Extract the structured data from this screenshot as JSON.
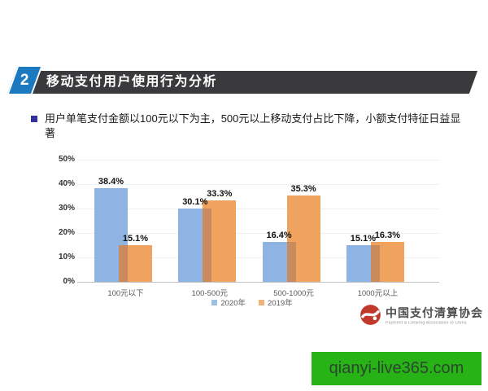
{
  "header": {
    "number": "2",
    "title": "移动支付用户使用行为分析",
    "banner_color": "#3a3a3c",
    "number_box_color": "#1b79c0"
  },
  "bullet": {
    "text": "用户单笔支付金额以100元以下为主，500元以上移动支付占比下降，小额支付特征日益显著"
  },
  "chart_data": {
    "type": "bar",
    "categories": [
      "100元以下",
      "100-500元",
      "500-1000元",
      "1000元以上"
    ],
    "series": [
      {
        "name": "2020年",
        "color": "#8DB4E2",
        "values": [
          38.4,
          30.1,
          16.4,
          15.1
        ]
      },
      {
        "name": "2019年",
        "color": "#F0A35F",
        "values": [
          15.1,
          33.3,
          35.3,
          16.3
        ]
      }
    ],
    "overlap_color": "#C98A5E",
    "y_ticks": [
      "0%",
      "10%",
      "20%",
      "30%",
      "40%",
      "50%"
    ],
    "ylim": [
      0,
      50
    ],
    "grid": true,
    "legend_position": "bottom",
    "data_label_suffix": "%"
  },
  "footer": {
    "logo_cn": "中国支付清算协会",
    "logo_en": "Payment & Clearing Association of China",
    "logo_red": "#C0392B"
  },
  "watermark": {
    "text": "qianyi-live365.com",
    "bg": "#27B216"
  }
}
